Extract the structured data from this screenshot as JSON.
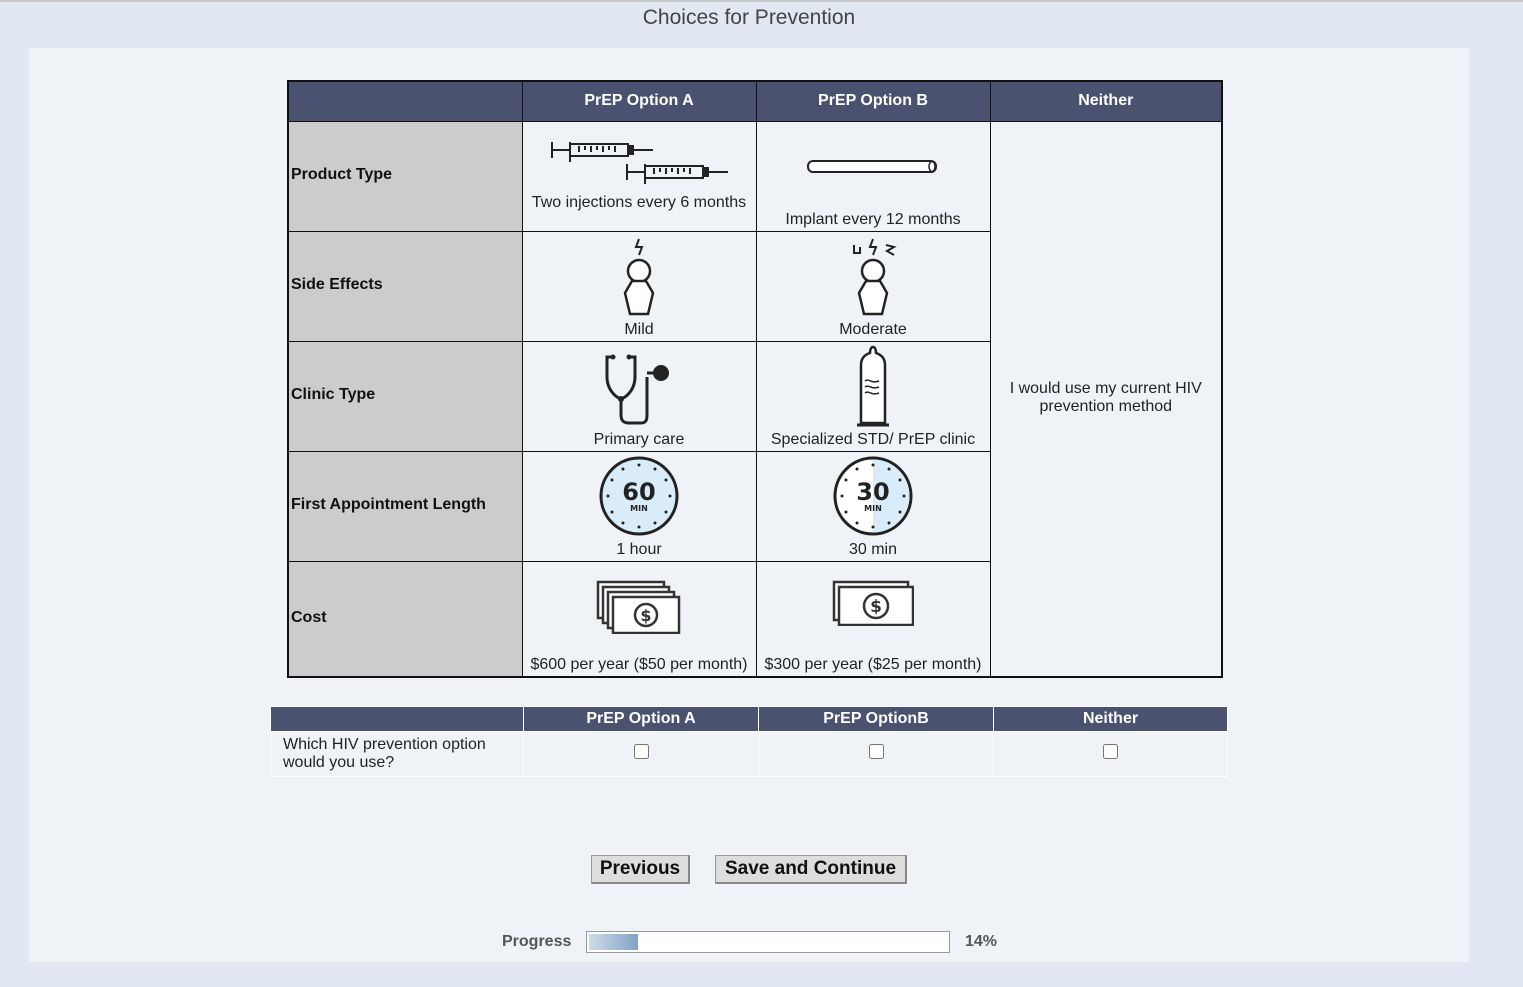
{
  "title": "Choices for Prevention",
  "choice_table": {
    "headers": [
      "",
      "PrEP Option A",
      "PrEP Option B",
      "Neither"
    ],
    "rows": [
      {
        "label": "Product Type",
        "a": "Two injections every 6 months",
        "a_icon": "syringes-icon",
        "b": "Implant every 12 months",
        "b_icon": "implant-rod-icon"
      },
      {
        "label": "Side Effects",
        "a": "Mild",
        "a_icon": "person-mild-icon",
        "b": "Moderate",
        "b_icon": "person-moderate-icon"
      },
      {
        "label": "Clinic Type",
        "a": "Primary care",
        "a_icon": "stethoscope-icon",
        "b": "Specialized STD/ PrEP clinic",
        "b_icon": "condom-icon"
      },
      {
        "label": "First Appointment Length",
        "a": "1 hour",
        "a_icon": "timer-60-icon",
        "a_timer": {
          "num": "60",
          "unit": "MIN"
        },
        "b": "30 min",
        "b_icon": "timer-30-icon",
        "b_timer": {
          "num": "30",
          "unit": "MIN"
        }
      },
      {
        "label": "Cost",
        "a": "$600 per year ($50 per month)",
        "a_icon": "money-stack-icon",
        "b": "$300 per year ($25 per month)",
        "b_icon": "money-icon"
      }
    ],
    "neither_text": "I would use my current HIV prevention method"
  },
  "question_table": {
    "headers": [
      "",
      "PrEP Option A",
      "PrEP OptionB",
      "Neither"
    ],
    "question": "Which HIV prevention option would you use?"
  },
  "buttons": {
    "previous": "Previous",
    "save": "Save and Continue"
  },
  "progress": {
    "label": "Progress",
    "value": "14%",
    "percent": 14
  },
  "colors": {
    "header": "#4a5270",
    "label_cell": "#cccccc",
    "page_bg": "#e1e7f3",
    "panel_bg": "#eff3f8"
  }
}
